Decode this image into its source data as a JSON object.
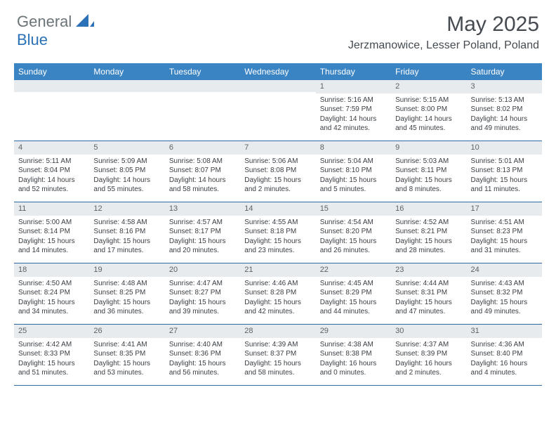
{
  "logo": {
    "general": "General",
    "blue": "Blue"
  },
  "title": "May 2025",
  "location": "Jerzmanowice, Lesser Poland, Poland",
  "colors": {
    "header_bg": "#3b84c4",
    "header_text": "#ffffff",
    "daynum_bg": "#e8ebed",
    "text": "#3a3f44",
    "border": "#2d6aa3",
    "logo_gray": "#6b7479",
    "logo_blue": "#2b71b8"
  },
  "dayNames": [
    "Sunday",
    "Monday",
    "Tuesday",
    "Wednesday",
    "Thursday",
    "Friday",
    "Saturday"
  ],
  "weeks": [
    [
      {
        "n": "",
        "sr": "",
        "ss": "",
        "dl": ""
      },
      {
        "n": "",
        "sr": "",
        "ss": "",
        "dl": ""
      },
      {
        "n": "",
        "sr": "",
        "ss": "",
        "dl": ""
      },
      {
        "n": "",
        "sr": "",
        "ss": "",
        "dl": ""
      },
      {
        "n": "1",
        "sr": "Sunrise: 5:16 AM",
        "ss": "Sunset: 7:59 PM",
        "dl": "Daylight: 14 hours and 42 minutes."
      },
      {
        "n": "2",
        "sr": "Sunrise: 5:15 AM",
        "ss": "Sunset: 8:00 PM",
        "dl": "Daylight: 14 hours and 45 minutes."
      },
      {
        "n": "3",
        "sr": "Sunrise: 5:13 AM",
        "ss": "Sunset: 8:02 PM",
        "dl": "Daylight: 14 hours and 49 minutes."
      }
    ],
    [
      {
        "n": "4",
        "sr": "Sunrise: 5:11 AM",
        "ss": "Sunset: 8:04 PM",
        "dl": "Daylight: 14 hours and 52 minutes."
      },
      {
        "n": "5",
        "sr": "Sunrise: 5:09 AM",
        "ss": "Sunset: 8:05 PM",
        "dl": "Daylight: 14 hours and 55 minutes."
      },
      {
        "n": "6",
        "sr": "Sunrise: 5:08 AM",
        "ss": "Sunset: 8:07 PM",
        "dl": "Daylight: 14 hours and 58 minutes."
      },
      {
        "n": "7",
        "sr": "Sunrise: 5:06 AM",
        "ss": "Sunset: 8:08 PM",
        "dl": "Daylight: 15 hours and 2 minutes."
      },
      {
        "n": "8",
        "sr": "Sunrise: 5:04 AM",
        "ss": "Sunset: 8:10 PM",
        "dl": "Daylight: 15 hours and 5 minutes."
      },
      {
        "n": "9",
        "sr": "Sunrise: 5:03 AM",
        "ss": "Sunset: 8:11 PM",
        "dl": "Daylight: 15 hours and 8 minutes."
      },
      {
        "n": "10",
        "sr": "Sunrise: 5:01 AM",
        "ss": "Sunset: 8:13 PM",
        "dl": "Daylight: 15 hours and 11 minutes."
      }
    ],
    [
      {
        "n": "11",
        "sr": "Sunrise: 5:00 AM",
        "ss": "Sunset: 8:14 PM",
        "dl": "Daylight: 15 hours and 14 minutes."
      },
      {
        "n": "12",
        "sr": "Sunrise: 4:58 AM",
        "ss": "Sunset: 8:16 PM",
        "dl": "Daylight: 15 hours and 17 minutes."
      },
      {
        "n": "13",
        "sr": "Sunrise: 4:57 AM",
        "ss": "Sunset: 8:17 PM",
        "dl": "Daylight: 15 hours and 20 minutes."
      },
      {
        "n": "14",
        "sr": "Sunrise: 4:55 AM",
        "ss": "Sunset: 8:18 PM",
        "dl": "Daylight: 15 hours and 23 minutes."
      },
      {
        "n": "15",
        "sr": "Sunrise: 4:54 AM",
        "ss": "Sunset: 8:20 PM",
        "dl": "Daylight: 15 hours and 26 minutes."
      },
      {
        "n": "16",
        "sr": "Sunrise: 4:52 AM",
        "ss": "Sunset: 8:21 PM",
        "dl": "Daylight: 15 hours and 28 minutes."
      },
      {
        "n": "17",
        "sr": "Sunrise: 4:51 AM",
        "ss": "Sunset: 8:23 PM",
        "dl": "Daylight: 15 hours and 31 minutes."
      }
    ],
    [
      {
        "n": "18",
        "sr": "Sunrise: 4:50 AM",
        "ss": "Sunset: 8:24 PM",
        "dl": "Daylight: 15 hours and 34 minutes."
      },
      {
        "n": "19",
        "sr": "Sunrise: 4:48 AM",
        "ss": "Sunset: 8:25 PM",
        "dl": "Daylight: 15 hours and 36 minutes."
      },
      {
        "n": "20",
        "sr": "Sunrise: 4:47 AM",
        "ss": "Sunset: 8:27 PM",
        "dl": "Daylight: 15 hours and 39 minutes."
      },
      {
        "n": "21",
        "sr": "Sunrise: 4:46 AM",
        "ss": "Sunset: 8:28 PM",
        "dl": "Daylight: 15 hours and 42 minutes."
      },
      {
        "n": "22",
        "sr": "Sunrise: 4:45 AM",
        "ss": "Sunset: 8:29 PM",
        "dl": "Daylight: 15 hours and 44 minutes."
      },
      {
        "n": "23",
        "sr": "Sunrise: 4:44 AM",
        "ss": "Sunset: 8:31 PM",
        "dl": "Daylight: 15 hours and 47 minutes."
      },
      {
        "n": "24",
        "sr": "Sunrise: 4:43 AM",
        "ss": "Sunset: 8:32 PM",
        "dl": "Daylight: 15 hours and 49 minutes."
      }
    ],
    [
      {
        "n": "25",
        "sr": "Sunrise: 4:42 AM",
        "ss": "Sunset: 8:33 PM",
        "dl": "Daylight: 15 hours and 51 minutes."
      },
      {
        "n": "26",
        "sr": "Sunrise: 4:41 AM",
        "ss": "Sunset: 8:35 PM",
        "dl": "Daylight: 15 hours and 53 minutes."
      },
      {
        "n": "27",
        "sr": "Sunrise: 4:40 AM",
        "ss": "Sunset: 8:36 PM",
        "dl": "Daylight: 15 hours and 56 minutes."
      },
      {
        "n": "28",
        "sr": "Sunrise: 4:39 AM",
        "ss": "Sunset: 8:37 PM",
        "dl": "Daylight: 15 hours and 58 minutes."
      },
      {
        "n": "29",
        "sr": "Sunrise: 4:38 AM",
        "ss": "Sunset: 8:38 PM",
        "dl": "Daylight: 16 hours and 0 minutes."
      },
      {
        "n": "30",
        "sr": "Sunrise: 4:37 AM",
        "ss": "Sunset: 8:39 PM",
        "dl": "Daylight: 16 hours and 2 minutes."
      },
      {
        "n": "31",
        "sr": "Sunrise: 4:36 AM",
        "ss": "Sunset: 8:40 PM",
        "dl": "Daylight: 16 hours and 4 minutes."
      }
    ]
  ]
}
